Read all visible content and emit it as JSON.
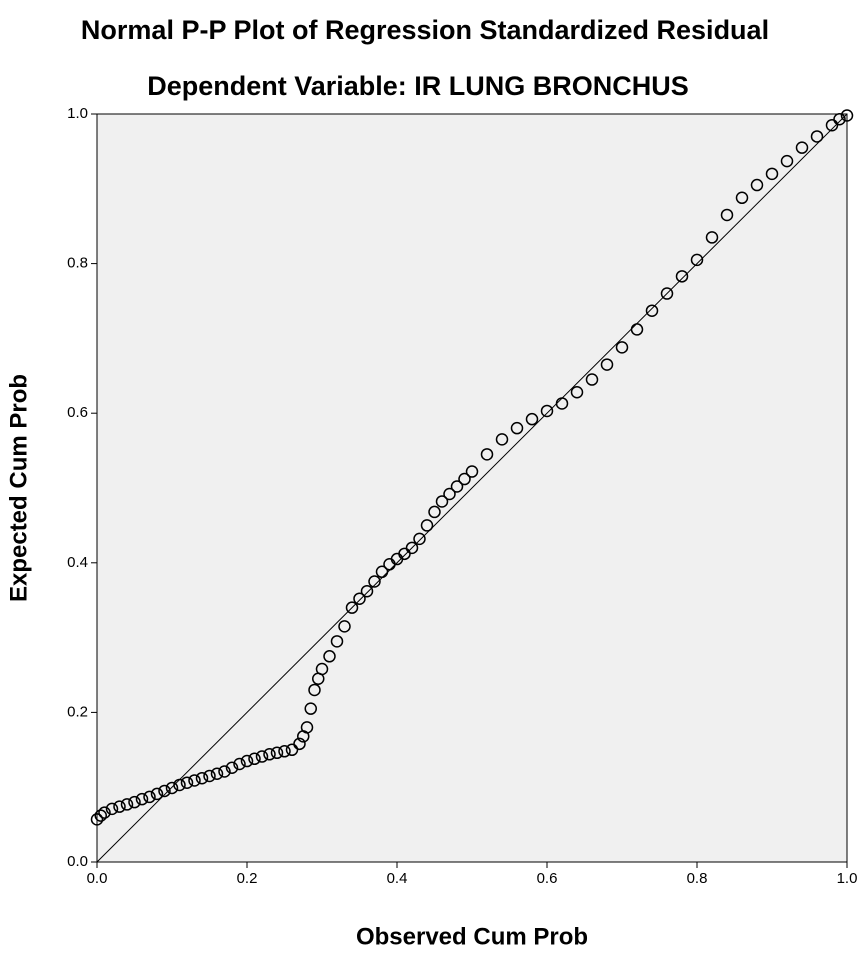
{
  "chart_data": {
    "type": "scatter",
    "title": "Normal P-P Plot of Regression Standardized Residual",
    "subtitle": "Dependent Variable: IR LUNG BRONCHUS",
    "x_label": "Observed Cum Prob",
    "y_label": "Expected Cum Prob",
    "xlim": [
      0,
      1
    ],
    "ylim": [
      0,
      1
    ],
    "xticks": [
      {
        "value": 0,
        "label": "0.0"
      },
      0.2,
      0.4,
      0.6,
      0.8,
      {
        "value": 1,
        "label": "1.0"
      }
    ],
    "yticks": [
      {
        "value": 0,
        "label": "0.0"
      },
      0.2,
      0.4,
      0.6,
      0.8,
      {
        "value": 1,
        "label": "1.0"
      }
    ],
    "color": "#000000",
    "x": [
      0.0,
      0.005,
      0.01,
      0.02,
      0.03,
      0.04,
      0.05,
      0.06,
      0.07,
      0.08,
      0.09,
      0.1,
      0.11,
      0.12,
      0.13,
      0.14,
      0.15,
      0.16,
      0.17,
      0.18,
      0.19,
      0.2,
      0.21,
      0.22,
      0.23,
      0.24,
      0.25,
      0.26,
      0.27,
      0.275,
      0.28,
      0.285,
      0.29,
      0.295,
      0.3,
      0.31,
      0.32,
      0.33,
      0.34,
      0.35,
      0.36,
      0.37,
      0.38,
      0.39,
      0.4,
      0.41,
      0.42,
      0.43,
      0.44,
      0.45,
      0.46,
      0.47,
      0.48,
      0.49,
      0.5,
      0.52,
      0.54,
      0.56,
      0.58,
      0.6,
      0.62,
      0.64,
      0.66,
      0.68,
      0.7,
      0.72,
      0.74,
      0.76,
      0.78,
      0.8,
      0.82,
      0.84,
      0.86,
      0.88,
      0.9,
      0.92,
      0.94,
      0.96,
      0.98,
      0.99,
      1.0
    ],
    "values": [
      0.057,
      0.062,
      0.066,
      0.071,
      0.074,
      0.077,
      0.08,
      0.084,
      0.087,
      0.091,
      0.095,
      0.099,
      0.103,
      0.106,
      0.109,
      0.112,
      0.115,
      0.118,
      0.121,
      0.126,
      0.131,
      0.135,
      0.138,
      0.141,
      0.144,
      0.146,
      0.148,
      0.15,
      0.158,
      0.168,
      0.18,
      0.205,
      0.23,
      0.245,
      0.258,
      0.275,
      0.295,
      0.315,
      0.34,
      0.352,
      0.362,
      0.375,
      0.388,
      0.398,
      0.405,
      0.412,
      0.42,
      0.432,
      0.45,
      0.468,
      0.482,
      0.492,
      0.502,
      0.512,
      0.522,
      0.545,
      0.565,
      0.58,
      0.592,
      0.603,
      0.613,
      0.628,
      0.645,
      0.665,
      0.688,
      0.712,
      0.737,
      0.76,
      0.783,
      0.805,
      0.835,
      0.865,
      0.888,
      0.905,
      0.92,
      0.937,
      0.955,
      0.97,
      0.985,
      0.993,
      0.998
    ]
  }
}
